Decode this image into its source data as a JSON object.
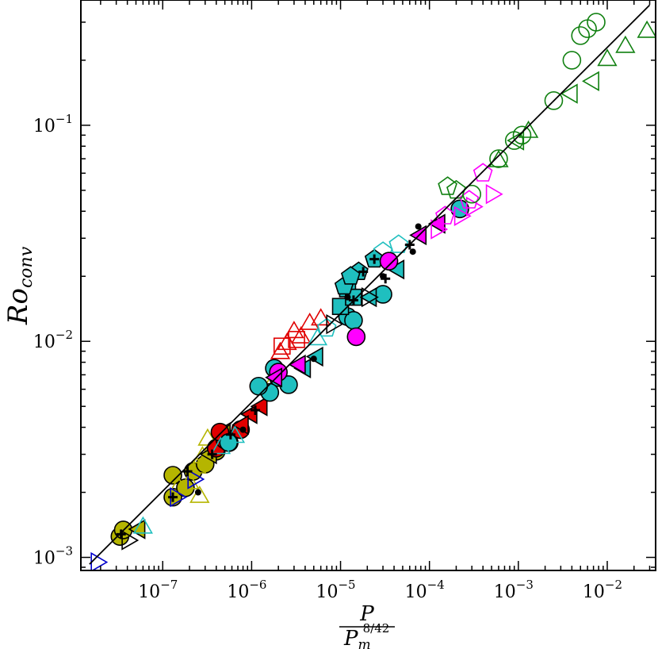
{
  "chart_data": {
    "type": "scatter",
    "title": "",
    "xscale": "log",
    "yscale": "log",
    "xlim": [
      1.2e-08,
      0.035
    ],
    "ylim": [
      0.00087,
      0.38
    ],
    "xlabel": {
      "numerator": "P",
      "denominator_base": "P",
      "denominator_sub": "m",
      "denominator_sup": "8/42"
    },
    "ylabel": {
      "base": "Ro",
      "sub": "conv"
    },
    "x_ticks": [
      {
        "value": 1e-07,
        "base": "10",
        "exp": "−7"
      },
      {
        "value": 1e-06,
        "base": "10",
        "exp": "−6"
      },
      {
        "value": 1e-05,
        "base": "10",
        "exp": "−5"
      },
      {
        "value": 0.0001,
        "base": "10",
        "exp": "−4"
      },
      {
        "value": 0.001,
        "base": "10",
        "exp": "−3"
      },
      {
        "value": 0.01,
        "base": "10",
        "exp": "−2"
      }
    ],
    "y_ticks": [
      {
        "value": 0.001,
        "base": "10",
        "exp": "−3"
      },
      {
        "value": 0.01,
        "base": "10",
        "exp": "−2"
      },
      {
        "value": 0.1,
        "base": "10",
        "exp": "−1"
      }
    ],
    "colors": {
      "yellow": "#b5b500",
      "red": "#e00000",
      "cyan": "#1fbfbf",
      "magenta": "#ff00ff",
      "green": "#108010",
      "blue": "#0000cc",
      "black": "#000000"
    },
    "fit_line": {
      "x": [
        1.5e-08,
        0.03
      ],
      "y": [
        0.00093,
        0.36
      ],
      "color": "#000000"
    },
    "series": [
      {
        "color": "yellow",
        "marker": "circle",
        "filled": true,
        "x": [
          3.3e-08,
          3.6e-08,
          1.3e-07,
          1.3e-07,
          1.8e-07,
          2.2e-07,
          3e-07,
          4e-07,
          5.6e-07
        ],
        "y": [
          0.00125,
          0.00134,
          0.0019,
          0.0024,
          0.0021,
          0.0025,
          0.0027,
          0.0031,
          0.0034
        ]
      },
      {
        "color": "yellow",
        "marker": "triangle-up",
        "filled": false,
        "x": [
          1.5e-07,
          2e-07,
          2.8e-07,
          3.5e-07,
          1.8e-06,
          2.6e-07,
          3.2e-07,
          2.4e-07
        ],
        "y": [
          0.0021,
          0.0022,
          0.0029,
          0.0031,
          0.0066,
          0.0019,
          0.0035,
          0.0026
        ]
      },
      {
        "color": "yellow",
        "marker": "triangle-left",
        "filled": true,
        "x": [
          5.5e-08,
          3.5e-07,
          5e-07
        ],
        "y": [
          0.00135,
          0.003,
          0.0038
        ]
      },
      {
        "color": "red",
        "marker": "circle",
        "filled": true,
        "x": [
          4e-07,
          5e-07,
          7.5e-07,
          4.4e-07
        ],
        "y": [
          0.0032,
          0.0035,
          0.0039,
          0.0038
        ]
      },
      {
        "color": "red",
        "marker": "triangle-up",
        "filled": false,
        "x": [
          2.5e-06,
          3e-06,
          3.6e-06,
          2.1e-06,
          4.5e-06,
          6e-06
        ],
        "y": [
          0.0097,
          0.011,
          0.0104,
          0.0088,
          0.012,
          0.0126
        ]
      },
      {
        "color": "red",
        "marker": "square",
        "filled": false,
        "x": [
          3.2e-06,
          2.2e-06
        ],
        "y": [
          0.0102,
          0.0095
        ]
      },
      {
        "color": "red",
        "marker": "triangle-left",
        "filled": true,
        "x": [
          1e-06,
          1.3e-06,
          8e-07
        ],
        "y": [
          0.0046,
          0.005,
          0.0041
        ]
      },
      {
        "color": "cyan",
        "marker": "circle",
        "filled": true,
        "x": [
          1.8e-06,
          2e-06,
          2.6e-06,
          1.2e-05,
          1.4e-05,
          0.00022,
          3e-05,
          5.5e-07,
          1.6e-06,
          1.2e-06
        ],
        "y": [
          0.0075,
          0.0068,
          0.0063,
          0.013,
          0.0125,
          0.041,
          0.0165,
          0.0034,
          0.0058,
          0.0062
        ]
      },
      {
        "color": "cyan",
        "marker": "square",
        "filled": true,
        "x": [
          1e-05,
          1.2e-05,
          1.4e-05
        ],
        "y": [
          0.0145,
          0.0175,
          0.016
        ]
      },
      {
        "color": "cyan",
        "marker": "pentagon",
        "filled": true,
        "x": [
          1.1e-05,
          1.6e-05,
          2.4e-05,
          1.3e-05
        ],
        "y": [
          0.018,
          0.021,
          0.024,
          0.02
        ]
      },
      {
        "color": "cyan",
        "marker": "pentagon",
        "filled": false,
        "x": [
          3e-05,
          4.5e-05,
          7e-06
        ],
        "y": [
          0.026,
          0.028,
          0.0115
        ]
      },
      {
        "color": "cyan",
        "marker": "triangle-up",
        "filled": false,
        "x": [
          6e-08,
          4.5e-07,
          6.5e-07,
          5.5e-06
        ],
        "y": [
          0.00137,
          0.0032,
          0.0036,
          0.0102
        ]
      },
      {
        "color": "cyan",
        "marker": "triangle-left",
        "filled": true,
        "x": [
          4e-06,
          5.5e-06,
          2.2e-05,
          4.5e-05
        ],
        "y": [
          0.0075,
          0.0085,
          0.016,
          0.0215
        ]
      },
      {
        "color": "magenta",
        "marker": "circle",
        "filled": true,
        "x": [
          1.5e-05,
          2e-06,
          3.5e-05
        ],
        "y": [
          0.0105,
          0.0072,
          0.0235
        ]
      },
      {
        "color": "magenta",
        "marker": "triangle-left",
        "filled": true,
        "x": [
          1.9e-06,
          3.5e-06,
          8e-05,
          0.00013
        ],
        "y": [
          0.0068,
          0.0078,
          0.031,
          0.035
        ]
      },
      {
        "color": "magenta",
        "marker": "pentagon",
        "filled": false,
        "x": [
          0.0004,
          0.00015,
          0.00028
        ],
        "y": [
          0.06,
          0.038,
          0.045
        ]
      },
      {
        "color": "magenta",
        "marker": "triangle-right",
        "filled": false,
        "x": [
          0.0003,
          0.0005,
          0.00022,
          0.00012
        ],
        "y": [
          0.042,
          0.048,
          0.038,
          0.033
        ]
      },
      {
        "color": "green",
        "marker": "circle",
        "filled": false,
        "x": [
          0.005,
          0.006,
          0.0075,
          0.004,
          0.0025,
          0.0009,
          0.0006,
          0.0011,
          0.0003
        ],
        "y": [
          0.26,
          0.28,
          0.3,
          0.2,
          0.13,
          0.085,
          0.07,
          0.09,
          0.048
        ]
      },
      {
        "color": "green",
        "marker": "triangle-up",
        "filled": false,
        "x": [
          0.016,
          0.028,
          0.0013,
          0.0006,
          0.01
        ],
        "y": [
          0.23,
          0.27,
          0.093,
          0.068,
          0.2
        ]
      },
      {
        "color": "green",
        "marker": "triangle-left",
        "filled": false,
        "x": [
          0.004,
          0.007,
          0.001
        ],
        "y": [
          0.14,
          0.16,
          0.085
        ]
      },
      {
        "color": "green",
        "marker": "pentagon",
        "filled": false,
        "x": [
          0.00016,
          0.0002
        ],
        "y": [
          0.052,
          0.05
        ]
      },
      {
        "color": "blue",
        "marker": "triangle-right",
        "filled": false,
        "x": [
          1.8e-08,
          1.4e-07,
          2.2e-07
        ],
        "y": [
          0.00095,
          0.0019,
          0.0023
        ]
      },
      {
        "color": "black",
        "marker": "triangle-right",
        "filled": false,
        "x": [
          4e-08,
          8e-06,
          2e-05
        ],
        "y": [
          0.0012,
          0.012,
          0.016
        ]
      },
      {
        "color": "black",
        "marker": "cross",
        "filled": true,
        "x": [
          3.4e-08,
          1.3e-07,
          1.9e-07,
          3.6e-07,
          5.8e-07,
          1.1e-06,
          1.4e-05,
          1.8e-05,
          2.4e-05,
          3.2e-05,
          6e-05
        ],
        "y": [
          0.00128,
          0.0019,
          0.0025,
          0.003,
          0.0037,
          0.0048,
          0.0155,
          0.021,
          0.024,
          0.0195,
          0.028
        ]
      },
      {
        "color": "black",
        "marker": "dot",
        "filled": true,
        "x": [
          2.5e-07,
          8e-07,
          5e-06,
          3e-05,
          6.5e-05,
          7.5e-05,
          1.2e-05
        ],
        "y": [
          0.002,
          0.0039,
          0.0083,
          0.02,
          0.026,
          0.034,
          0.016
        ]
      }
    ]
  }
}
